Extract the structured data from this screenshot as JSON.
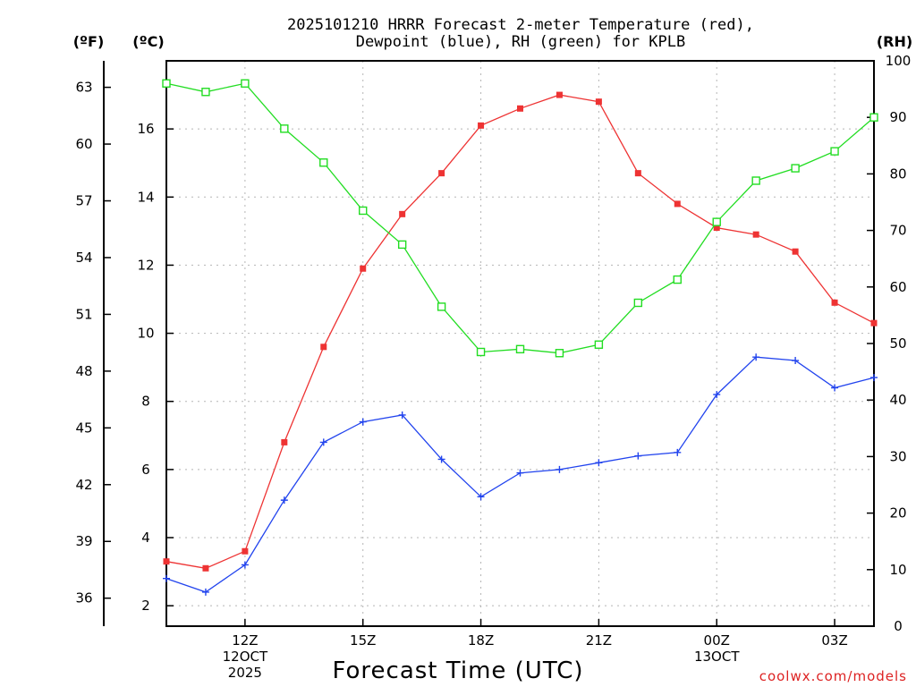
{
  "chart_data": {
    "type": "line",
    "title_line1": "2025101210 HRRR Forecast 2-meter Temperature (red),",
    "title_line2": "Dewpoint (blue), RH (green) for KPLB",
    "xlabel": "Forecast Time (UTC)",
    "credit": "coolwx.com/models",
    "unit_f": "(ºF)",
    "unit_c": "(ºC)",
    "unit_rh": "(RH)",
    "x_hours": [
      10,
      11,
      12,
      13,
      14,
      15,
      16,
      17,
      18,
      19,
      20,
      21,
      22,
      23,
      24,
      25,
      26,
      27,
      28
    ],
    "x_range": [
      10,
      28
    ],
    "x_ticks": [
      {
        "hour": 12,
        "lines": [
          "12Z",
          "12OCT",
          "2025"
        ]
      },
      {
        "hour": 15,
        "lines": [
          "15Z"
        ]
      },
      {
        "hour": 18,
        "lines": [
          "18Z"
        ]
      },
      {
        "hour": 21,
        "lines": [
          "21Z"
        ]
      },
      {
        "hour": 24,
        "lines": [
          "00Z",
          "13OCT"
        ]
      },
      {
        "hour": 27,
        "lines": [
          "03Z"
        ]
      }
    ],
    "celsius_range": [
      1.4,
      18.0
    ],
    "celsius_ticks": [
      "2",
      "4",
      "6",
      "8",
      "10",
      "12",
      "14",
      "16"
    ],
    "fahrenheit_ticks": [
      "36",
      "39",
      "42",
      "45",
      "48",
      "51",
      "54",
      "57",
      "60",
      "63"
    ],
    "rh_range": [
      0,
      100
    ],
    "rh_ticks": [
      "0",
      "10",
      "20",
      "30",
      "40",
      "50",
      "60",
      "70",
      "80",
      "90",
      "100"
    ],
    "series": [
      {
        "name": "2-meter Temperature",
        "axis": "celsius",
        "color": "#ee3333",
        "marker": "filled-square",
        "values": [
          3.3,
          3.1,
          3.6,
          6.8,
          9.6,
          11.9,
          13.5,
          14.7,
          16.1,
          16.6,
          17.0,
          16.8,
          14.7,
          13.8,
          13.1,
          12.9,
          12.4,
          10.9,
          10.3
        ]
      },
      {
        "name": "Dewpoint",
        "axis": "celsius",
        "color": "#2244ee",
        "marker": "plus",
        "values": [
          2.8,
          2.4,
          3.2,
          5.1,
          6.8,
          7.4,
          7.6,
          6.3,
          5.2,
          5.9,
          6.0,
          6.2,
          6.4,
          6.5,
          8.2,
          9.3,
          9.2,
          8.4,
          8.7
        ]
      },
      {
        "name": "RH",
        "axis": "rh",
        "color": "#22dd22",
        "marker": "open-square",
        "values": [
          96,
          94.5,
          96,
          88,
          82,
          73.5,
          67.5,
          56.5,
          48.5,
          49,
          48.3,
          49.8,
          57.2,
          61.3,
          71.5,
          78.8,
          81,
          84,
          90
        ]
      }
    ]
  }
}
